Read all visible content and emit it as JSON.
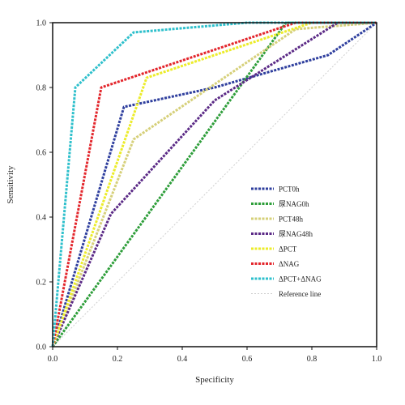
{
  "chart_data": {
    "type": "line",
    "title": "",
    "xlabel": "Specificity",
    "ylabel": "Sensitivity",
    "xlim": [
      0,
      1
    ],
    "ylim": [
      0,
      1
    ],
    "x_ticks": [
      "0.0",
      "0.2",
      "0.4",
      "0.6",
      "0.8",
      "1.0"
    ],
    "y_ticks": [
      "0.0",
      "0.2",
      "0.4",
      "0.6",
      "0.8",
      "1.0"
    ],
    "grid": false,
    "legend_position": "bottom-right",
    "series": [
      {
        "name": "PCT0h",
        "color": "#2f3f9e",
        "x": [
          0,
          0.22,
          0.5,
          0.85,
          1
        ],
        "y": [
          0,
          0.74,
          0.8,
          0.9,
          1
        ]
      },
      {
        "name": "尿NAG0h",
        "color": "#2e9e3a",
        "x": [
          0,
          0.72,
          1
        ],
        "y": [
          0,
          1,
          1
        ]
      },
      {
        "name": "PCT48h",
        "color": "#d6d07a",
        "x": [
          0,
          0.25,
          0.75,
          1
        ],
        "y": [
          0,
          0.64,
          0.98,
          1
        ]
      },
      {
        "name": "尿NAG48h",
        "color": "#5b2a86",
        "x": [
          0,
          0.18,
          0.5,
          0.88,
          1
        ],
        "y": [
          0,
          0.41,
          0.76,
          1,
          1
        ]
      },
      {
        "name": "ΔPCT",
        "color": "#ecec2a",
        "x": [
          0,
          0.29,
          0.8,
          1
        ],
        "y": [
          0,
          0.83,
          1,
          1
        ]
      },
      {
        "name": "ΔNAG",
        "color": "#e3262c",
        "x": [
          0,
          0.15,
          0.75,
          1
        ],
        "y": [
          0,
          0.8,
          1,
          1
        ]
      },
      {
        "name": "ΔPCT+ΔNAG",
        "color": "#2fc0cc",
        "x": [
          0,
          0.07,
          0.25,
          0.6,
          1
        ],
        "y": [
          0,
          0.8,
          0.97,
          1,
          1
        ]
      },
      {
        "name": "Reference line",
        "color": "#cfcfcf",
        "x": [
          0,
          1
        ],
        "y": [
          0,
          1
        ]
      }
    ]
  }
}
